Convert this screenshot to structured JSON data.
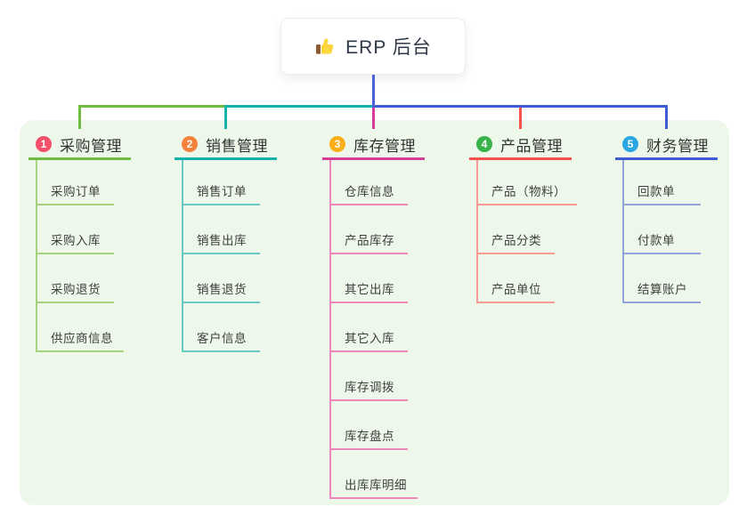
{
  "root": {
    "label": "ERP 后台",
    "icon": "thumbs-up-icon"
  },
  "colors": {
    "canvas": "#ffffff",
    "panel_bg": "#edf8ea",
    "root_line": "#4a62d6",
    "root_text": "#2f3949",
    "child_text": "#3f3f3f"
  },
  "branches": [
    {
      "num": "1",
      "label": "采购管理",
      "line_color": "#6fbe3f",
      "child_line_color": "#a5d37e",
      "badge_color": "#f4506a",
      "children": [
        "采购订单",
        "采购入库",
        "采购退货",
        "供应商信息"
      ]
    },
    {
      "num": "2",
      "label": "销售管理",
      "line_color": "#14b2ab",
      "child_line_color": "#69c9c3",
      "badge_color": "#f5823b",
      "children": [
        "销售订单",
        "销售出库",
        "销售退货",
        "客户信息"
      ]
    },
    {
      "num": "3",
      "label": "库存管理",
      "line_color": "#d63d96",
      "child_line_color": "#ef86ba",
      "badge_color": "#fbae17",
      "children": [
        "仓库信息",
        "产品库存",
        "其它出库",
        "其它入库",
        "库存调拨",
        "库存盘点",
        "出库库明细"
      ]
    },
    {
      "num": "4",
      "label": "产品管理",
      "line_color": "#f6524c",
      "child_line_color": "#f99a93",
      "badge_color": "#38b34a",
      "children": [
        "产品（物料）",
        "产品分类",
        "产品单位"
      ]
    },
    {
      "num": "5",
      "label": "财务管理",
      "line_color": "#3f5cd4",
      "child_line_color": "#91a4dc",
      "badge_color": "#2aa7e2",
      "children": [
        "回款单",
        "付款单",
        "结算账户"
      ]
    }
  ]
}
